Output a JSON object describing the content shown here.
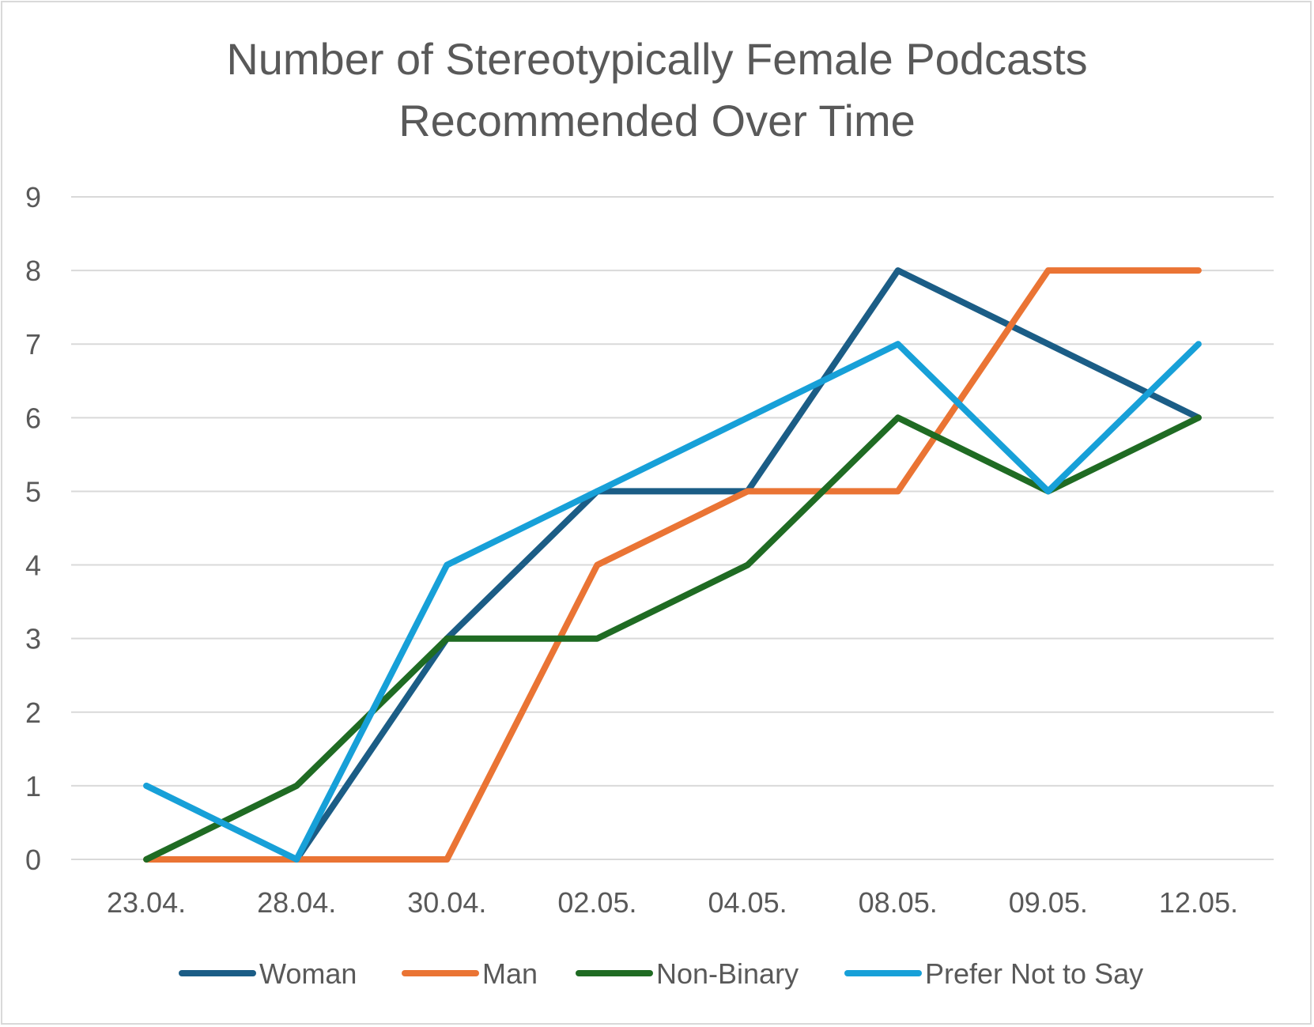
{
  "chart_data": {
    "type": "line",
    "title_lines": [
      "Number of Stereotypically Female Podcasts",
      "Recommended Over Time"
    ],
    "xlabel": "",
    "ylabel": "",
    "categories": [
      "23.04.",
      "28.04.",
      "30.04.",
      "02.05.",
      "04.05.",
      "08.05.",
      "09.05.",
      "12.05."
    ],
    "ylim": [
      0,
      9
    ],
    "yticks": [
      0,
      1,
      2,
      3,
      4,
      5,
      6,
      7,
      8,
      9
    ],
    "grid": "horizontal",
    "legend_position": "bottom",
    "series": [
      {
        "name": "Woman",
        "color": "#1b5d86",
        "values": [
          null,
          0,
          3,
          5,
          5,
          8,
          7,
          6
        ]
      },
      {
        "name": "Man",
        "color": "#ea7434",
        "values": [
          0,
          0,
          0,
          4,
          5,
          5,
          8,
          8
        ]
      },
      {
        "name": "Non-Binary",
        "color": "#1f6b23",
        "values": [
          0,
          1,
          3,
          3,
          4,
          6,
          5,
          6
        ]
      },
      {
        "name": "Prefer Not to Say",
        "color": "#17a0d8",
        "values": [
          1,
          0,
          4,
          5,
          6,
          7,
          5,
          7
        ]
      }
    ],
    "gridline_color": "#d9d9d9",
    "text_color": "#595959"
  }
}
